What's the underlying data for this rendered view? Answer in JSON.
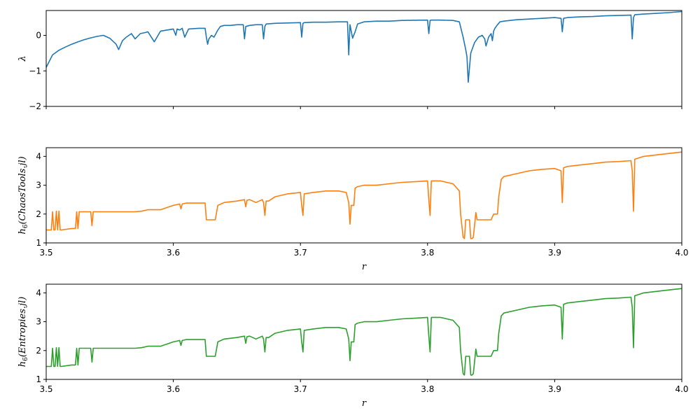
{
  "colors": {
    "s1": "#1f77b4",
    "s2": "#ff7f0e",
    "s3": "#2ca02c"
  },
  "chart_data": [
    {
      "type": "line",
      "ylabel": "λ",
      "xlim": [
        3.5,
        4.0
      ],
      "ylim": [
        -2,
        0.7
      ],
      "xticks": [
        3.5,
        3.6,
        3.7,
        3.8,
        3.9,
        4.0
      ],
      "xtick_labels_visible": false,
      "yticks": [
        -2,
        -1,
        0
      ],
      "ytick_labels": [
        "−2",
        "−1",
        "0"
      ],
      "series": [
        {
          "x": [
            3.5,
            3.505,
            3.51,
            3.515,
            3.52,
            3.525,
            3.53,
            3.535,
            3.54,
            3.545,
            3.55,
            3.555,
            3.557,
            3.56,
            3.563,
            3.567,
            3.57,
            3.574,
            3.578,
            3.58,
            3.585,
            3.59,
            3.595,
            3.6,
            3.602,
            3.603,
            3.605,
            3.607,
            3.609,
            3.612,
            3.62,
            3.625,
            3.626,
            3.627,
            3.628,
            3.629,
            3.63,
            3.632,
            3.635,
            3.637,
            3.64,
            3.645,
            3.65,
            3.655,
            3.656,
            3.657,
            3.66,
            3.665,
            3.67,
            3.671,
            3.672,
            3.673,
            3.68,
            3.69,
            3.7,
            3.701,
            3.702,
            3.703,
            3.71,
            3.72,
            3.73,
            3.737,
            3.738,
            3.739,
            3.741,
            3.743,
            3.745,
            3.75,
            3.76,
            3.77,
            3.78,
            3.8,
            3.801,
            3.802,
            3.803,
            3.81,
            3.82,
            3.825,
            3.828,
            3.83,
            3.831,
            3.832,
            3.834,
            3.837,
            3.84,
            3.843,
            3.845,
            3.846,
            3.848,
            3.85,
            3.851,
            3.852,
            3.853,
            3.855,
            3.857,
            3.86,
            3.87,
            3.88,
            3.89,
            3.9,
            3.905,
            3.906,
            3.907,
            3.91,
            3.92,
            3.93,
            3.94,
            3.95,
            3.96,
            3.961,
            3.962,
            3.963,
            3.97,
            3.98,
            3.99,
            4.0
          ],
          "y": [
            -0.9,
            -0.55,
            -0.42,
            -0.33,
            -0.25,
            -0.18,
            -0.12,
            -0.07,
            -0.03,
            0.0,
            -0.08,
            -0.25,
            -0.4,
            -0.15,
            -0.05,
            0.05,
            -0.1,
            0.05,
            0.08,
            0.1,
            -0.18,
            0.12,
            0.15,
            0.18,
            0.0,
            0.18,
            0.15,
            0.2,
            -0.05,
            0.18,
            0.2,
            0.2,
            -0.05,
            -0.25,
            -0.1,
            -0.05,
            0.0,
            -0.05,
            0.15,
            0.25,
            0.28,
            0.28,
            0.3,
            0.3,
            -0.1,
            0.25,
            0.28,
            0.3,
            0.3,
            -0.1,
            0.25,
            0.32,
            0.34,
            0.35,
            0.36,
            -0.05,
            0.34,
            0.36,
            0.37,
            0.37,
            0.38,
            0.38,
            -0.55,
            0.3,
            -0.08,
            0.1,
            0.32,
            0.38,
            0.4,
            0.4,
            0.42,
            0.43,
            0.05,
            0.42,
            0.43,
            0.43,
            0.42,
            0.38,
            -0.05,
            -0.4,
            -0.6,
            -1.32,
            -0.5,
            -0.2,
            -0.05,
            0.0,
            -0.1,
            -0.3,
            -0.05,
            0.05,
            -0.15,
            0.12,
            0.2,
            0.3,
            0.38,
            0.4,
            0.44,
            0.46,
            0.48,
            0.5,
            0.48,
            0.1,
            0.48,
            0.5,
            0.52,
            0.53,
            0.55,
            0.56,
            0.57,
            -0.1,
            0.5,
            0.58,
            0.6,
            0.62,
            0.64,
            0.67
          ]
        }
      ]
    },
    {
      "type": "line",
      "xlabel": "r",
      "ylabel": {
        "base": "h",
        "sub": "6",
        "arg": "(ChaosTools.jl)"
      },
      "xlim": [
        3.5,
        4.0
      ],
      "ylim": [
        1,
        4.3
      ],
      "xticks": [
        3.5,
        3.6,
        3.7,
        3.8,
        3.9,
        4.0
      ],
      "xtick_labels": [
        "3.5",
        "3.6",
        "3.7",
        "3.8",
        "3.9",
        "4.0"
      ],
      "yticks": [
        1,
        2,
        3,
        4
      ],
      "ytick_labels": [
        "1",
        "2",
        "3",
        "4"
      ],
      "series": [
        {
          "x": [
            3.5,
            3.504,
            3.505,
            3.506,
            3.507,
            3.508,
            3.509,
            3.51,
            3.511,
            3.512,
            3.52,
            3.523,
            3.524,
            3.525,
            3.526,
            3.527,
            3.53,
            3.535,
            3.536,
            3.537,
            3.54,
            3.55,
            3.56,
            3.57,
            3.575,
            3.58,
            3.59,
            3.6,
            3.605,
            3.606,
            3.607,
            3.61,
            3.62,
            3.625,
            3.626,
            3.627,
            3.63,
            3.633,
            3.635,
            3.64,
            3.65,
            3.656,
            3.657,
            3.658,
            3.66,
            3.665,
            3.67,
            3.671,
            3.672,
            3.673,
            3.675,
            3.68,
            3.69,
            3.7,
            3.701,
            3.702,
            3.703,
            3.71,
            3.72,
            3.73,
            3.736,
            3.738,
            3.739,
            3.74,
            3.742,
            3.743,
            3.745,
            3.75,
            3.76,
            3.77,
            3.78,
            3.79,
            3.8,
            3.801,
            3.802,
            3.803,
            3.81,
            3.82,
            3.825,
            3.826,
            3.828,
            3.829,
            3.83,
            3.831,
            3.833,
            3.834,
            3.835,
            3.836,
            3.838,
            3.839,
            3.84,
            3.845,
            3.85,
            3.852,
            3.855,
            3.856,
            3.857,
            3.858,
            3.86,
            3.87,
            3.88,
            3.89,
            3.9,
            3.905,
            3.906,
            3.907,
            3.91,
            3.92,
            3.93,
            3.94,
            3.95,
            3.96,
            3.961,
            3.962,
            3.963,
            3.97,
            3.98,
            3.99,
            4.0
          ],
          "y": [
            1.45,
            1.45,
            2.08,
            1.45,
            1.45,
            2.1,
            1.45,
            2.1,
            1.45,
            1.45,
            1.5,
            1.5,
            2.08,
            1.5,
            2.08,
            2.08,
            2.08,
            2.08,
            1.6,
            2.08,
            2.08,
            2.08,
            2.08,
            2.08,
            2.1,
            2.15,
            2.15,
            2.3,
            2.35,
            2.18,
            2.35,
            2.38,
            2.38,
            2.38,
            1.8,
            1.8,
            1.8,
            1.8,
            2.3,
            2.4,
            2.45,
            2.5,
            2.25,
            2.48,
            2.5,
            2.4,
            2.5,
            2.4,
            1.95,
            2.45,
            2.45,
            2.6,
            2.7,
            2.75,
            2.3,
            1.95,
            2.7,
            2.75,
            2.8,
            2.8,
            2.75,
            2.4,
            1.65,
            2.3,
            2.3,
            2.9,
            2.95,
            3.0,
            3.0,
            3.05,
            3.1,
            3.12,
            3.15,
            2.5,
            1.95,
            3.15,
            3.15,
            3.05,
            2.8,
            2.0,
            1.2,
            1.15,
            1.8,
            1.8,
            1.8,
            1.15,
            1.15,
            1.2,
            2.05,
            1.8,
            1.8,
            1.8,
            1.8,
            2.0,
            2.0,
            2.6,
            2.9,
            3.2,
            3.3,
            3.4,
            3.5,
            3.55,
            3.58,
            3.5,
            2.4,
            3.6,
            3.65,
            3.7,
            3.75,
            3.8,
            3.82,
            3.85,
            3.5,
            2.1,
            3.9,
            4.0,
            4.05,
            4.1,
            4.15
          ]
        }
      ]
    },
    {
      "type": "line",
      "xlabel": "r",
      "ylabel": {
        "base": "h",
        "sub": "6",
        "arg": "(Entropies.jl)"
      },
      "xlim": [
        3.5,
        4.0
      ],
      "ylim": [
        1,
        4.3
      ],
      "xticks": [
        3.5,
        3.6,
        3.7,
        3.8,
        3.9,
        4.0
      ],
      "xtick_labels": [
        "3.5",
        "3.6",
        "3.7",
        "3.8",
        "3.9",
        "4.0"
      ],
      "yticks": [
        1,
        2,
        3,
        4
      ],
      "ytick_labels": [
        "1",
        "2",
        "3",
        "4"
      ],
      "series": [
        {
          "x": [
            3.5,
            3.504,
            3.505,
            3.506,
            3.507,
            3.508,
            3.509,
            3.51,
            3.511,
            3.512,
            3.52,
            3.523,
            3.524,
            3.525,
            3.526,
            3.527,
            3.53,
            3.535,
            3.536,
            3.537,
            3.54,
            3.55,
            3.56,
            3.57,
            3.575,
            3.58,
            3.59,
            3.6,
            3.605,
            3.606,
            3.607,
            3.61,
            3.62,
            3.625,
            3.626,
            3.627,
            3.63,
            3.633,
            3.635,
            3.64,
            3.65,
            3.656,
            3.657,
            3.658,
            3.66,
            3.665,
            3.67,
            3.671,
            3.672,
            3.673,
            3.675,
            3.68,
            3.69,
            3.7,
            3.701,
            3.702,
            3.703,
            3.71,
            3.72,
            3.73,
            3.736,
            3.738,
            3.739,
            3.74,
            3.742,
            3.743,
            3.745,
            3.75,
            3.76,
            3.77,
            3.78,
            3.79,
            3.8,
            3.801,
            3.802,
            3.803,
            3.81,
            3.82,
            3.825,
            3.826,
            3.828,
            3.829,
            3.83,
            3.831,
            3.833,
            3.834,
            3.835,
            3.836,
            3.838,
            3.839,
            3.84,
            3.845,
            3.85,
            3.852,
            3.855,
            3.856,
            3.857,
            3.858,
            3.86,
            3.87,
            3.88,
            3.89,
            3.9,
            3.905,
            3.906,
            3.907,
            3.91,
            3.92,
            3.93,
            3.94,
            3.95,
            3.96,
            3.961,
            3.962,
            3.963,
            3.97,
            3.98,
            3.99,
            4.0
          ],
          "y": [
            1.45,
            1.45,
            2.08,
            1.45,
            1.45,
            2.1,
            1.45,
            2.1,
            1.45,
            1.45,
            1.5,
            1.5,
            2.08,
            1.5,
            2.08,
            2.08,
            2.08,
            2.08,
            1.6,
            2.08,
            2.08,
            2.08,
            2.08,
            2.08,
            2.1,
            2.15,
            2.15,
            2.3,
            2.35,
            2.18,
            2.35,
            2.38,
            2.38,
            2.38,
            1.8,
            1.8,
            1.8,
            1.8,
            2.3,
            2.4,
            2.45,
            2.5,
            2.25,
            2.48,
            2.5,
            2.4,
            2.5,
            2.4,
            1.95,
            2.45,
            2.45,
            2.6,
            2.7,
            2.75,
            2.3,
            1.95,
            2.7,
            2.75,
            2.8,
            2.8,
            2.75,
            2.4,
            1.65,
            2.3,
            2.3,
            2.9,
            2.95,
            3.0,
            3.0,
            3.05,
            3.1,
            3.12,
            3.15,
            2.5,
            1.95,
            3.15,
            3.15,
            3.05,
            2.8,
            2.0,
            1.2,
            1.15,
            1.8,
            1.8,
            1.8,
            1.15,
            1.15,
            1.2,
            2.05,
            1.8,
            1.8,
            1.8,
            1.8,
            2.0,
            2.0,
            2.6,
            2.9,
            3.2,
            3.3,
            3.4,
            3.5,
            3.55,
            3.58,
            3.5,
            2.4,
            3.6,
            3.65,
            3.7,
            3.75,
            3.8,
            3.82,
            3.85,
            3.5,
            2.1,
            3.9,
            4.0,
            4.05,
            4.1,
            4.15
          ]
        }
      ]
    }
  ]
}
